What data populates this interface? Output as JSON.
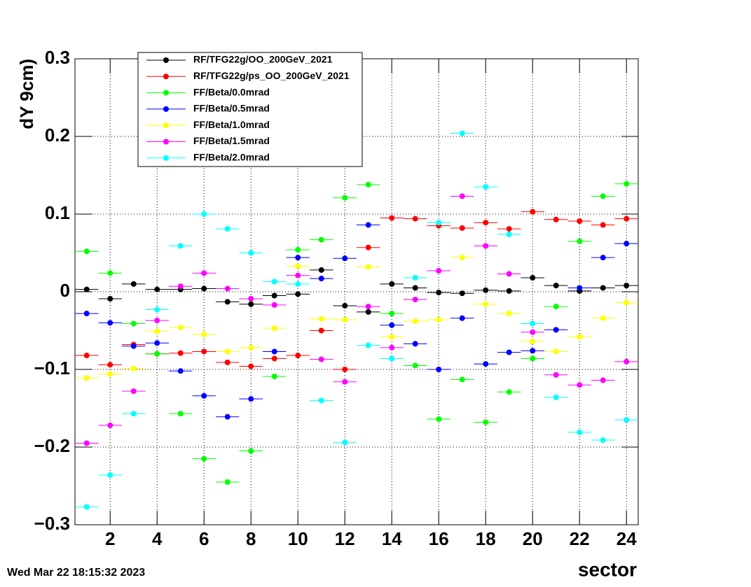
{
  "chart_data": {
    "type": "errorbar",
    "x_label": "sector",
    "y_label": "dY 9cm)",
    "date_stamp": "Wed Mar 22 18:15:32 2023",
    "x": [
      1,
      2,
      3,
      4,
      5,
      6,
      7,
      8,
      9,
      10,
      11,
      12,
      13,
      14,
      15,
      16,
      17,
      18,
      19,
      20,
      21,
      22,
      23,
      24
    ],
    "xlim": [
      0.5,
      24.5
    ],
    "xticks": [
      2,
      4,
      6,
      8,
      10,
      12,
      14,
      16,
      18,
      20,
      22,
      24
    ],
    "ylim": [
      -0.3,
      0.3
    ],
    "yticks": [
      {
        "value": -0.3,
        "label": "−0.3"
      },
      {
        "value": -0.2,
        "label": "−0.2"
      },
      {
        "value": -0.1,
        "label": "−0.1"
      },
      0,
      0.1,
      0.2,
      0.3
    ],
    "grid": true,
    "legend": "top-left",
    "series": [
      {
        "name": "RF/TFG22g/OO_200GeV_2021",
        "color": "#000000",
        "values": [
          0.003,
          -0.009,
          0.01,
          0.003,
          0.003,
          0.004,
          -0.013,
          -0.016,
          -0.005,
          -0.003,
          0.028,
          -0.018,
          -0.026,
          0.01,
          0.005,
          -0.001,
          -0.002,
          0.002,
          0.001,
          0.018,
          0.008,
          0.001,
          0.005,
          0.008
        ]
      },
      {
        "name": "RF/TFG22g/ps_OO_200GeV_2021",
        "color": "#ff0000",
        "values": [
          -0.082,
          -0.094,
          -0.068,
          -0.08,
          -0.079,
          -0.077,
          -0.091,
          -0.096,
          -0.086,
          -0.082,
          -0.05,
          -0.1,
          0.057,
          0.095,
          0.094,
          0.085,
          0.082,
          0.089,
          0.081,
          0.103,
          0.093,
          0.091,
          0.086,
          0.094
        ]
      },
      {
        "name": "FF/Beta/0.0mrad",
        "color": "#00ff00",
        "values": [
          0.052,
          0.024,
          -0.041,
          -0.08,
          -0.157,
          -0.215,
          -0.245,
          -0.205,
          -0.109,
          0.054,
          0.067,
          0.121,
          0.138,
          -0.028,
          -0.095,
          -0.164,
          -0.113,
          -0.168,
          -0.129,
          -0.086,
          -0.019,
          0.065,
          0.123,
          0.139
        ]
      },
      {
        "name": "FF/Beta/0.5mrad",
        "color": "#0000ff",
        "values": [
          -0.028,
          -0.04,
          -0.07,
          -0.066,
          -0.102,
          -0.134,
          -0.161,
          -0.138,
          -0.077,
          0.044,
          0.017,
          0.043,
          0.086,
          -0.043,
          -0.067,
          -0.1,
          -0.034,
          -0.093,
          -0.078,
          -0.076,
          -0.049,
          0.005,
          0.044,
          0.062
        ]
      },
      {
        "name": "FF/Beta/1.0mrad",
        "color": "#ffff00",
        "values": [
          -0.111,
          -0.106,
          -0.099,
          -0.051,
          -0.046,
          -0.055,
          -0.077,
          -0.072,
          -0.047,
          0.033,
          -0.035,
          -0.036,
          0.032,
          -0.058,
          -0.038,
          -0.036,
          0.044,
          -0.016,
          -0.028,
          -0.064,
          -0.077,
          -0.058,
          -0.034,
          -0.014
        ]
      },
      {
        "name": "FF/Beta/1.5mrad",
        "color": "#ff00ff",
        "values": [
          -0.195,
          -0.172,
          -0.128,
          -0.037,
          0.007,
          0.024,
          0.004,
          -0.009,
          -0.017,
          0.021,
          -0.087,
          -0.116,
          -0.019,
          -0.072,
          -0.01,
          0.027,
          0.123,
          0.059,
          0.023,
          -0.052,
          -0.107,
          -0.12,
          -0.114,
          -0.09
        ]
      },
      {
        "name": "FF/Beta/2.0mrad",
        "color": "#00ffff",
        "values": [
          -0.277,
          -0.236,
          -0.157,
          -0.023,
          0.059,
          0.1,
          0.081,
          0.05,
          0.013,
          0.01,
          -0.14,
          -0.194,
          -0.069,
          -0.086,
          0.018,
          0.089,
          0.204,
          0.135,
          0.074,
          -0.041,
          -0.136,
          -0.181,
          -0.191,
          -0.165
        ]
      }
    ]
  }
}
